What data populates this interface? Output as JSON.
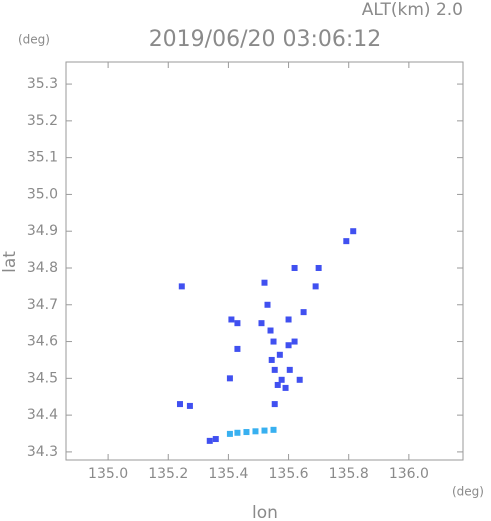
{
  "chart_data": {
    "type": "scatter",
    "title": "2019/06/20 03:06:12",
    "subtitle": "ALT(km) 2.0",
    "x_label": "lon",
    "y_label": "lat",
    "x_unit": "(deg)",
    "y_unit": "(deg)",
    "xlim": [
      134.86,
      136.18
    ],
    "ylim": [
      34.278,
      35.36
    ],
    "xticks": [
      {
        "value": 135,
        "label": "135.0"
      },
      135.2,
      135.4,
      135.6,
      135.8,
      {
        "value": 136,
        "label": "136.0"
      }
    ],
    "yticks": [
      34.3,
      34.4,
      34.5,
      34.6,
      34.7,
      34.8,
      34.9,
      {
        "value": 35,
        "label": "35.0"
      },
      35.1,
      35.2,
      35.3
    ],
    "series": [
      {
        "color": "#4050f0",
        "x": [
          135.792,
          135.815,
          135.245,
          135.52,
          135.62,
          135.7,
          135.69,
          135.53,
          135.41,
          135.43,
          135.51,
          135.65,
          135.6,
          135.54,
          135.43,
          135.55,
          135.6,
          135.62,
          135.571,
          135.554,
          135.577,
          135.604,
          135.637,
          135.564,
          135.59,
          135.544,
          135.405,
          135.554,
          135.239,
          135.272,
          135.338,
          135.358
        ],
        "y": [
          34.873,
          34.9,
          34.75,
          34.76,
          34.8,
          34.8,
          34.75,
          34.7,
          34.66,
          34.65,
          34.65,
          34.68,
          34.66,
          34.63,
          34.58,
          34.6,
          34.59,
          34.6,
          34.564,
          34.523,
          34.496,
          34.523,
          34.496,
          34.482,
          34.474,
          34.55,
          34.5,
          34.43,
          34.43,
          34.425,
          34.33,
          34.335
        ]
      },
      {
        "color": "#38b0f0",
        "x": [
          135.405,
          135.43,
          135.46,
          135.49,
          135.52,
          135.55
        ],
        "y": [
          34.349,
          34.352,
          34.354,
          34.356,
          34.358,
          34.36
        ]
      }
    ]
  }
}
